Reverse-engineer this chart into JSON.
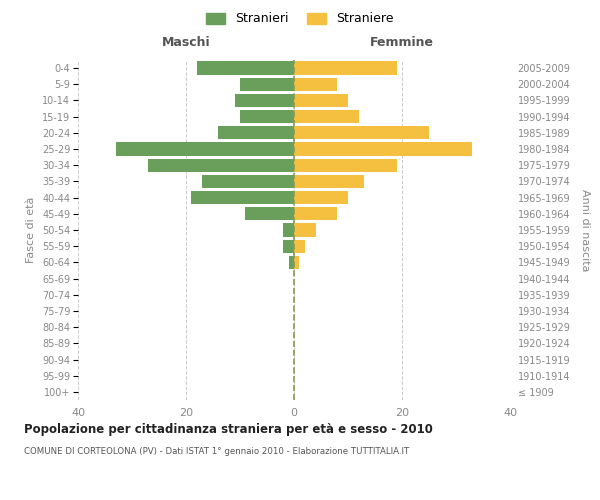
{
  "age_groups": [
    "100+",
    "95-99",
    "90-94",
    "85-89",
    "80-84",
    "75-79",
    "70-74",
    "65-69",
    "60-64",
    "55-59",
    "50-54",
    "45-49",
    "40-44",
    "35-39",
    "30-34",
    "25-29",
    "20-24",
    "15-19",
    "10-14",
    "5-9",
    "0-4"
  ],
  "birth_years": [
    "≤ 1909",
    "1910-1914",
    "1915-1919",
    "1920-1924",
    "1925-1929",
    "1930-1934",
    "1935-1939",
    "1940-1944",
    "1945-1949",
    "1950-1954",
    "1955-1959",
    "1960-1964",
    "1965-1969",
    "1970-1974",
    "1975-1979",
    "1980-1984",
    "1985-1989",
    "1990-1994",
    "1995-1999",
    "2000-2004",
    "2005-2009"
  ],
  "males": [
    0,
    0,
    0,
    0,
    0,
    0,
    0,
    0,
    1,
    2,
    2,
    9,
    19,
    17,
    27,
    33,
    14,
    10,
    11,
    10,
    18
  ],
  "females": [
    0,
    0,
    0,
    0,
    0,
    0,
    0,
    0,
    1,
    2,
    4,
    8,
    10,
    13,
    19,
    33,
    25,
    12,
    10,
    8,
    19
  ],
  "male_color": "#6a9e5b",
  "female_color": "#f5c040",
  "center_line_color": "#8a9a50",
  "grid_color": "#cccccc",
  "background_color": "#ffffff",
  "title": "Popolazione per cittadinanza straniera per età e sesso - 2010",
  "subtitle": "COMUNE DI CORTEOLONA (PV) - Dati ISTAT 1° gennaio 2010 - Elaborazione TUTTITALIA.IT",
  "xlabel_left": "Maschi",
  "xlabel_right": "Femmine",
  "ylabel_left": "Fasce di età",
  "ylabel_right": "Anni di nascita",
  "legend_male": "Stranieri",
  "legend_female": "Straniere",
  "xlim": 40,
  "bar_height": 0.82
}
